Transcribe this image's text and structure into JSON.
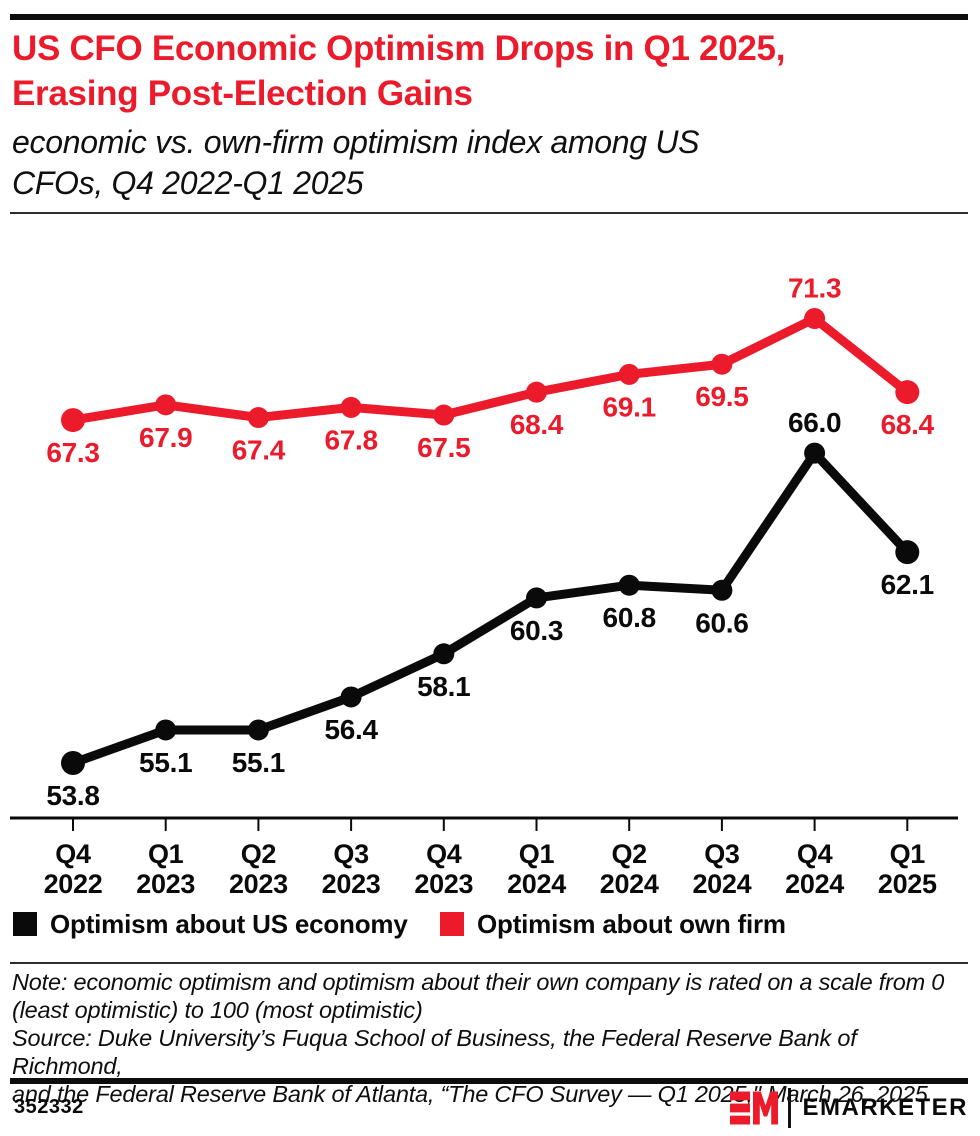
{
  "header": {
    "title_lines": [
      "US CFO Economic Optimism Drops in Q1 2025,",
      "Erasing Post-Election Gains"
    ],
    "subtitle_lines": [
      "economic vs. own-firm optimism index among US",
      "CFOs, Q4 2022-Q1 2025"
    ]
  },
  "colors": {
    "accent_red": "#EC1B2C",
    "series_black": "#0a0a0a"
  },
  "chart_data": {
    "type": "line",
    "title": "US CFO Economic Optimism Drops in Q1 2025, Erasing Post-Election Gains",
    "subtitle": "economic vs. own-firm optimism index among US CFOs, Q4 2022-Q1 2025",
    "categories": [
      "Q4 2022",
      "Q1 2023",
      "Q2 2023",
      "Q3 2023",
      "Q4 2023",
      "Q1 2024",
      "Q2 2024",
      "Q3 2024",
      "Q4 2024",
      "Q1 2025"
    ],
    "x_tick_lines": [
      [
        "Q4",
        "2022"
      ],
      [
        "Q1",
        "2023"
      ],
      [
        "Q2",
        "2023"
      ],
      [
        "Q3",
        "2023"
      ],
      [
        "Q4",
        "2023"
      ],
      [
        "Q1",
        "2024"
      ],
      [
        "Q2",
        "2024"
      ],
      [
        "Q3",
        "2024"
      ],
      [
        "Q4",
        "2024"
      ],
      [
        "Q1",
        "2025"
      ]
    ],
    "series": [
      {
        "name": "Optimism about US economy",
        "color": "#0a0a0a",
        "values": [
          53.8,
          55.1,
          55.1,
          56.4,
          58.1,
          60.3,
          60.8,
          60.6,
          66.0,
          62.1
        ],
        "label_side": [
          "below",
          "below",
          "below",
          "below",
          "below",
          "below",
          "below",
          "below",
          "above",
          "below"
        ]
      },
      {
        "name": "Optimism about own firm",
        "color": "#EC1B2C",
        "values": [
          67.3,
          67.9,
          67.4,
          67.8,
          67.5,
          68.4,
          69.1,
          69.5,
          71.3,
          68.4
        ],
        "label_side": [
          "below",
          "below",
          "below",
          "below",
          "below",
          "below",
          "below",
          "below",
          "above",
          "below"
        ]
      }
    ],
    "ylim": [
      51.5,
      75.5
    ],
    "grid": false,
    "point_labels": true,
    "legend_position": "bottom"
  },
  "legend": {
    "items": [
      {
        "label": "Optimism about US economy",
        "color": "#0a0a0a"
      },
      {
        "label": "Optimism about own firm",
        "color": "#EC1B2C"
      }
    ]
  },
  "notes": {
    "lines": [
      "Note: economic optimism and optimism about their own company is rated on a scale from 0",
      "(least optimistic) to 100 (most optimistic)",
      "Source: Duke University’s Fuqua School of Business, the Federal Reserve Bank of Richmond,",
      "and the Federal Reserve Bank of Atlanta, “The CFO Survey — Q1 2025,\" March 26, 2025"
    ]
  },
  "footer": {
    "chart_id": "352332",
    "brand_name": "EMARKETER",
    "logo_mark": "EM"
  }
}
